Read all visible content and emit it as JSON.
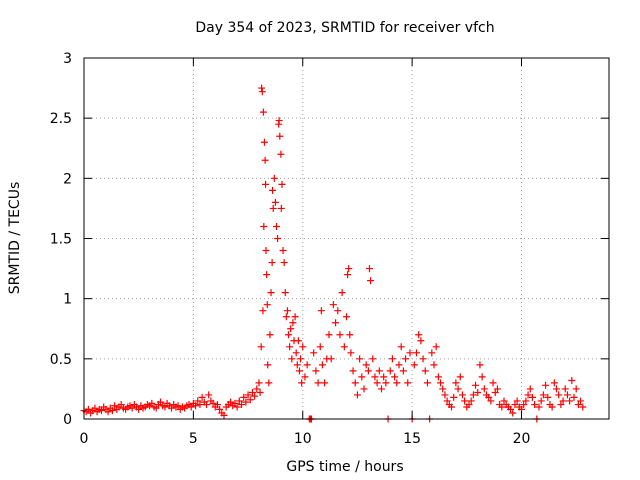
{
  "chart_data": {
    "type": "scatter",
    "title": "Day 354 of 2023, SRMTID for receiver vfch",
    "xlabel": "GPS time / hours",
    "ylabel": "SRMTID / TECUs",
    "xlim": [
      0,
      24
    ],
    "ylim": [
      0,
      3
    ],
    "xticks": [
      0,
      5,
      10,
      15,
      20
    ],
    "xtick_labels": [
      "0",
      "5",
      "10",
      "15",
      "20"
    ],
    "yticks": [
      0,
      0.5,
      1,
      1.5,
      2,
      2.5,
      3
    ],
    "ytick_labels": [
      "0",
      "0.5",
      "1",
      "1.5",
      "2",
      "2.5",
      "3"
    ],
    "grid": true,
    "marker": "plus",
    "color": "#ff0000",
    "series": [
      {
        "name": "SRMTID",
        "x": [
          0.0,
          0.1,
          0.2,
          0.3,
          0.4,
          0.5,
          0.6,
          0.7,
          0.8,
          0.9,
          1.0,
          1.1,
          1.2,
          1.3,
          1.4,
          1.5,
          1.6,
          1.7,
          1.8,
          1.9,
          2.0,
          2.1,
          2.2,
          2.3,
          2.4,
          2.5,
          2.6,
          2.7,
          2.8,
          2.9,
          3.0,
          3.1,
          3.2,
          3.3,
          3.4,
          3.5,
          3.6,
          3.7,
          3.8,
          3.9,
          4.0,
          4.1,
          4.2,
          4.3,
          4.4,
          4.5,
          4.6,
          4.7,
          4.8,
          4.9,
          5.0,
          5.1,
          5.2,
          5.3,
          5.4,
          5.5,
          5.6,
          5.7,
          5.8,
          5.9,
          6.0,
          6.1,
          6.2,
          6.3,
          6.4,
          6.5,
          6.6,
          6.7,
          6.8,
          6.9,
          7.0,
          7.1,
          7.2,
          7.3,
          7.4,
          7.5,
          7.6,
          7.7,
          7.8,
          7.9,
          8.0,
          8.05,
          8.1,
          8.12,
          8.15,
          8.18,
          8.2,
          8.22,
          8.25,
          8.28,
          8.3,
          8.32,
          8.35,
          8.38,
          8.4,
          8.45,
          8.5,
          8.55,
          8.6,
          8.62,
          8.65,
          8.7,
          8.75,
          8.8,
          8.85,
          8.9,
          8.92,
          8.95,
          9.0,
          9.02,
          9.05,
          9.1,
          9.15,
          9.2,
          9.25,
          9.3,
          9.35,
          9.4,
          9.45,
          9.5,
          9.55,
          9.6,
          9.65,
          9.7,
          9.75,
          9.8,
          9.85,
          9.9,
          9.95,
          10.0,
          10.1,
          10.2,
          10.3,
          10.35,
          10.4,
          10.5,
          10.6,
          10.7,
          10.8,
          10.85,
          10.9,
          11.0,
          11.1,
          11.2,
          11.3,
          11.4,
          11.5,
          11.6,
          11.7,
          11.8,
          11.9,
          12.0,
          12.05,
          12.1,
          12.15,
          12.2,
          12.3,
          12.4,
          12.5,
          12.6,
          12.7,
          12.8,
          12.9,
          13.0,
          13.05,
          13.1,
          13.2,
          13.3,
          13.4,
          13.5,
          13.6,
          13.7,
          13.8,
          13.9,
          14.0,
          14.1,
          14.2,
          14.3,
          14.4,
          14.5,
          14.6,
          14.7,
          14.8,
          14.9,
          15.0,
          15.1,
          15.2,
          15.3,
          15.4,
          15.5,
          15.6,
          15.7,
          15.8,
          15.9,
          16.0,
          16.1,
          16.2,
          16.3,
          16.4,
          16.5,
          16.6,
          16.7,
          16.8,
          16.9,
          17.0,
          17.1,
          17.2,
          17.3,
          17.4,
          17.5,
          17.6,
          17.7,
          17.8,
          17.9,
          18.0,
          18.1,
          18.2,
          18.3,
          18.4,
          18.5,
          18.6,
          18.7,
          18.8,
          18.9,
          19.0,
          19.1,
          19.2,
          19.3,
          19.4,
          19.5,
          19.6,
          19.7,
          19.8,
          19.9,
          20.0,
          20.1,
          20.2,
          20.3,
          20.4,
          20.5,
          20.6,
          20.7,
          20.8,
          20.9,
          21.0,
          21.1,
          21.2,
          21.3,
          21.4,
          21.5,
          21.6,
          21.7,
          21.8,
          21.9,
          22.0,
          22.1,
          22.2,
          22.3,
          22.4,
          22.5,
          22.6,
          22.7,
          22.8
        ],
        "y": [
          0.07,
          0.06,
          0.08,
          0.05,
          0.07,
          0.09,
          0.06,
          0.08,
          0.07,
          0.1,
          0.08,
          0.06,
          0.09,
          0.07,
          0.11,
          0.08,
          0.1,
          0.12,
          0.09,
          0.08,
          0.1,
          0.11,
          0.09,
          0.12,
          0.1,
          0.08,
          0.11,
          0.09,
          0.1,
          0.12,
          0.11,
          0.13,
          0.1,
          0.09,
          0.12,
          0.14,
          0.11,
          0.1,
          0.13,
          0.11,
          0.09,
          0.12,
          0.1,
          0.11,
          0.08,
          0.1,
          0.09,
          0.11,
          0.12,
          0.1,
          0.13,
          0.11,
          0.15,
          0.12,
          0.18,
          0.14,
          0.12,
          0.2,
          0.15,
          0.13,
          0.1,
          0.12,
          0.08,
          0.05,
          0.03,
          0.1,
          0.12,
          0.14,
          0.11,
          0.13,
          0.1,
          0.15,
          0.12,
          0.18,
          0.14,
          0.2,
          0.16,
          0.22,
          0.19,
          0.25,
          0.3,
          0.22,
          0.6,
          2.75,
          2.72,
          0.9,
          2.55,
          1.6,
          2.3,
          2.15,
          1.95,
          1.4,
          1.2,
          0.95,
          0.45,
          0.3,
          0.7,
          1.05,
          1.3,
          1.9,
          1.75,
          2.0,
          1.8,
          1.6,
          1.5,
          2.45,
          2.48,
          2.35,
          2.2,
          1.75,
          1.95,
          1.4,
          1.3,
          1.05,
          0.85,
          0.9,
          0.7,
          0.6,
          0.75,
          0.5,
          0.8,
          0.65,
          0.85,
          0.55,
          0.45,
          0.65,
          0.4,
          0.5,
          0.3,
          0.6,
          0.35,
          0.45,
          0.0,
          0.0,
          0.0,
          0.55,
          0.4,
          0.3,
          0.6,
          0.9,
          0.45,
          0.3,
          0.5,
          0.7,
          0.5,
          0.95,
          0.8,
          0.9,
          0.7,
          1.05,
          0.6,
          0.85,
          1.2,
          1.25,
          0.7,
          0.55,
          0.4,
          0.3,
          0.2,
          0.5,
          0.35,
          0.25,
          0.45,
          0.4,
          1.25,
          1.15,
          0.5,
          0.35,
          0.3,
          0.4,
          0.25,
          0.35,
          0.3,
          0.0,
          0.4,
          0.5,
          0.35,
          0.3,
          0.45,
          0.6,
          0.4,
          0.5,
          0.3,
          0.55,
          0.0,
          0.45,
          0.55,
          0.7,
          0.65,
          0.5,
          0.4,
          0.3,
          0.0,
          0.55,
          0.45,
          0.6,
          0.35,
          0.3,
          0.25,
          0.2,
          0.15,
          0.12,
          0.1,
          0.18,
          0.3,
          0.25,
          0.35,
          0.2,
          0.15,
          0.1,
          0.12,
          0.15,
          0.2,
          0.28,
          0.22,
          0.45,
          0.35,
          0.25,
          0.2,
          0.18,
          0.15,
          0.3,
          0.22,
          0.25,
          0.12,
          0.1,
          0.15,
          0.12,
          0.1,
          0.08,
          0.05,
          0.12,
          0.15,
          0.1,
          0.08,
          0.12,
          0.15,
          0.2,
          0.25,
          0.18,
          0.12,
          0.0,
          0.1,
          0.15,
          0.2,
          0.28,
          0.18,
          0.12,
          0.1,
          0.3,
          0.25,
          0.2,
          0.12,
          0.15,
          0.25,
          0.2,
          0.15,
          0.32,
          0.18,
          0.25,
          0.12,
          0.15,
          0.1
        ]
      }
    ]
  }
}
